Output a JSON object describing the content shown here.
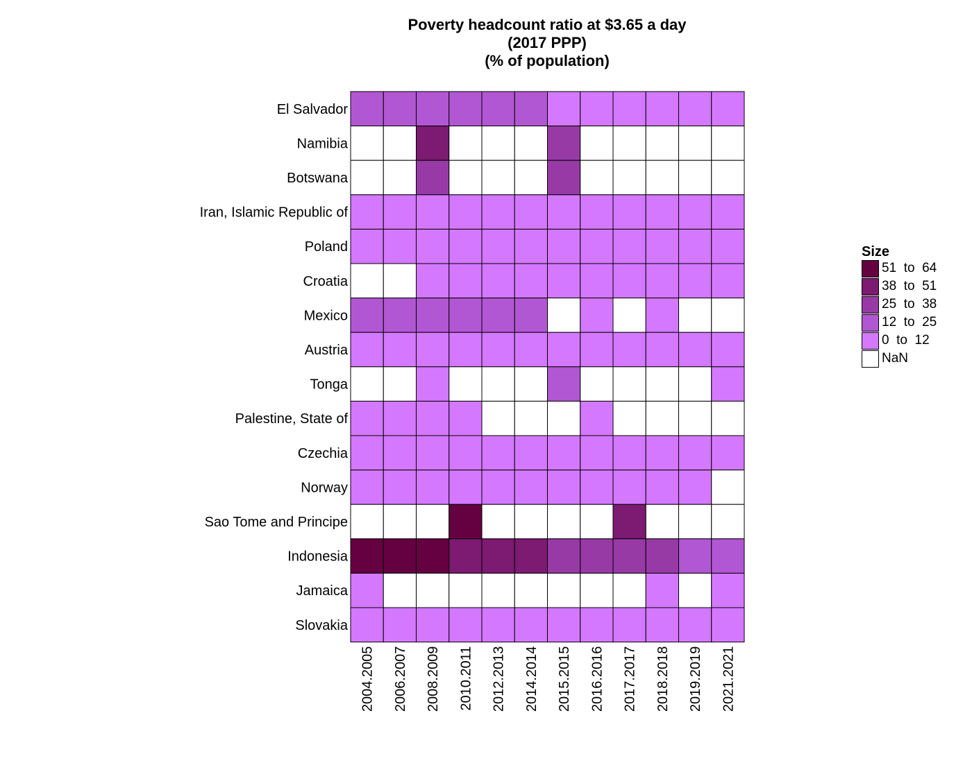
{
  "title_lines": [
    "Poverty headcount ratio at $3.65 a day",
    "(2017 PPP)",
    "(% of population)"
  ],
  "chart_data": {
    "type": "heatmap",
    "title": "Poverty headcount ratio at $3.65 a day (2017 PPP) (% of population)",
    "x_categories": [
      "2004.2005",
      "2006.2007",
      "2008.2009",
      "2010.2011",
      "2012.2013",
      "2014.2014",
      "2015.2015",
      "2016.2016",
      "2017.2017",
      "2018.2018",
      "2019.2019",
      "2021.2021"
    ],
    "y_categories": [
      "El Salvador",
      "Namibia",
      "Botswana",
      "Iran, Islamic Republic of",
      "Poland",
      "Croatia",
      "Mexico",
      "Austria",
      "Tonga",
      "Palestine, State of",
      "Czechia",
      "Norway",
      "Sao Tome and Principe",
      "Indonesia",
      "Jamaica",
      "Slovakia"
    ],
    "bin_grid": [
      [
        1,
        1,
        1,
        1,
        1,
        1,
        0,
        0,
        0,
        0,
        0,
        0
      ],
      [
        null,
        null,
        3,
        null,
        null,
        null,
        2,
        null,
        null,
        null,
        null,
        null
      ],
      [
        null,
        null,
        2,
        null,
        null,
        null,
        2,
        null,
        null,
        null,
        null,
        null
      ],
      [
        0,
        0,
        0,
        0,
        0,
        0,
        0,
        0,
        0,
        0,
        0,
        0
      ],
      [
        0,
        0,
        0,
        0,
        0,
        0,
        0,
        0,
        0,
        0,
        0,
        0
      ],
      [
        null,
        null,
        0,
        0,
        0,
        0,
        0,
        0,
        0,
        0,
        0,
        0
      ],
      [
        1,
        1,
        1,
        1,
        1,
        1,
        null,
        0,
        null,
        0,
        null,
        null
      ],
      [
        0,
        0,
        0,
        0,
        0,
        0,
        0,
        0,
        0,
        0,
        0,
        0
      ],
      [
        null,
        null,
        0,
        null,
        null,
        null,
        1,
        null,
        null,
        null,
        null,
        0
      ],
      [
        0,
        0,
        0,
        0,
        null,
        null,
        null,
        0,
        null,
        null,
        null,
        null
      ],
      [
        0,
        0,
        0,
        0,
        0,
        0,
        0,
        0,
        0,
        0,
        0,
        0
      ],
      [
        0,
        0,
        0,
        0,
        0,
        0,
        0,
        0,
        0,
        0,
        0,
        null
      ],
      [
        null,
        null,
        null,
        4,
        null,
        null,
        null,
        null,
        3,
        null,
        null,
        null
      ],
      [
        4,
        4,
        4,
        3,
        3,
        3,
        2,
        2,
        2,
        2,
        1,
        1
      ],
      [
        0,
        null,
        null,
        null,
        null,
        null,
        null,
        null,
        null,
        0,
        null,
        0
      ],
      [
        0,
        0,
        0,
        0,
        0,
        0,
        0,
        0,
        0,
        0,
        0,
        0
      ]
    ],
    "bins": [
      {
        "range": [
          0,
          12
        ],
        "color": "#d478ff"
      },
      {
        "range": [
          12,
          25
        ],
        "color": "#b257d3"
      },
      {
        "range": [
          25,
          38
        ],
        "color": "#983aa6"
      },
      {
        "range": [
          38,
          51
        ],
        "color": "#7d1a72"
      },
      {
        "range": [
          51,
          64
        ],
        "color": "#650041"
      }
    ],
    "nan_color": "#ffffff",
    "legend": {
      "title": "Size",
      "placement": "right",
      "items": [
        {
          "label": "51  to  64",
          "color": "#650041"
        },
        {
          "label": "38  to  51",
          "color": "#7d1a72"
        },
        {
          "label": "25  to  38",
          "color": "#983aa6"
        },
        {
          "label": "12  to  25",
          "color": "#b257d3"
        },
        {
          "label": "0  to  12",
          "color": "#d478ff"
        },
        {
          "label": "NaN",
          "color": "#ffffff"
        }
      ]
    }
  }
}
